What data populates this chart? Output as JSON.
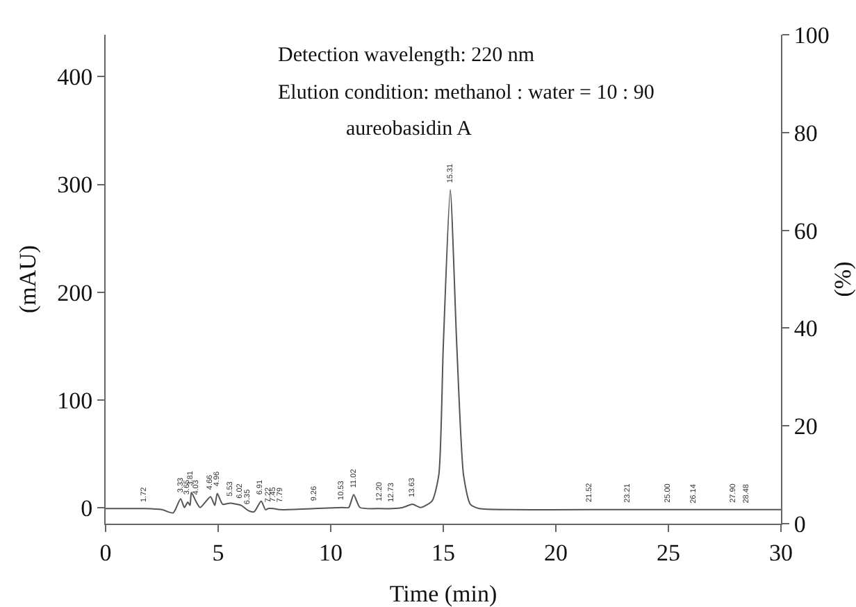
{
  "chart_data": {
    "type": "line",
    "xlabel": "Time (min)",
    "ylabel": "(mAU)",
    "y2label": "(%)",
    "x": [
      0,
      1,
      1.72,
      2.5,
      3.0,
      3.33,
      3.5,
      3.65,
      3.75,
      3.81,
      4.03,
      4.2,
      4.66,
      4.85,
      4.96,
      5.2,
      5.53,
      6.02,
      6.35,
      6.6,
      6.91,
      7.1,
      7.22,
      7.45,
      7.79,
      9.26,
      10.53,
      10.8,
      11.02,
      11.3,
      12.2,
      12.73,
      13.2,
      13.63,
      14.0,
      14.5,
      14.8,
      15.0,
      15.31,
      15.6,
      15.9,
      16.2,
      16.6,
      18,
      21.52,
      25,
      28.48,
      30
    ],
    "series": [
      {
        "color": "#555555",
        "values": [
          -1,
          -1,
          -1,
          -2,
          -5,
          8,
          0,
          5,
          2,
          14,
          5,
          0,
          10,
          2,
          13,
          3,
          4,
          2,
          -3,
          -4,
          6,
          -2,
          -1,
          -1,
          -2,
          -1,
          0,
          0,
          12,
          0,
          -1,
          -1,
          0,
          3,
          0,
          6,
          30,
          150,
          295,
          150,
          30,
          3,
          -1,
          -2,
          -2,
          -2,
          -2,
          -2
        ]
      }
    ],
    "xlim": [
      0,
      30
    ],
    "xticks": [
      0,
      5,
      10,
      15,
      20,
      25,
      30
    ],
    "ylim": [
      -15,
      439
    ],
    "yticks": [
      0,
      100,
      200,
      300,
      400
    ],
    "y2lim": [
      0,
      100
    ],
    "y2ticks": [
      0,
      20,
      40,
      60,
      80,
      100
    ],
    "grid": false,
    "marker": "none",
    "line_style": "solid",
    "annotations": [
      "Detection wavelength: 220 nm",
      "Elution condition: methanol : water = 10 : 90",
      {
        "text": "aureobasidin A",
        "x": 15.31,
        "y": 295
      },
      {
        "text": "1.72",
        "x": 1.72,
        "y": -1
      },
      {
        "text": "3.33",
        "x": 3.33,
        "y": 8
      },
      {
        "text": "3.65",
        "x": 3.65,
        "y": 5
      },
      {
        "text": "3.81",
        "x": 3.81,
        "y": 14
      },
      {
        "text": "4.03",
        "x": 4.03,
        "y": 5
      },
      {
        "text": "4.66",
        "x": 4.66,
        "y": 10
      },
      {
        "text": "4.96",
        "x": 4.96,
        "y": 13
      },
      {
        "text": "5.53",
        "x": 5.53,
        "y": 4
      },
      {
        "text": "6.02",
        "x": 6.02,
        "y": 2
      },
      {
        "text": "6.35",
        "x": 6.35,
        "y": -3
      },
      {
        "text": "6.91",
        "x": 6.91,
        "y": 6
      },
      {
        "text": "7.22",
        "x": 7.22,
        "y": -1
      },
      {
        "text": "7.45",
        "x": 7.45,
        "y": -1
      },
      {
        "text": "7.79",
        "x": 7.79,
        "y": -2
      },
      {
        "text": "9.26",
        "x": 9.26,
        "y": -1
      },
      {
        "text": "10.53",
        "x": 10.53,
        "y": 0
      },
      {
        "text": "11.02",
        "x": 11.02,
        "y": 12
      },
      {
        "text": "12.20",
        "x": 12.2,
        "y": -1
      },
      {
        "text": "12.73",
        "x": 12.73,
        "y": -1
      },
      {
        "text": "13.63",
        "x": 13.63,
        "y": 3
      },
      {
        "text": "15.31",
        "x": 15.31,
        "y": 295
      },
      {
        "text": "21.52",
        "x": 21.52,
        "y": -2
      },
      {
        "text": "23.21",
        "x": 23.21,
        "y": -2
      },
      {
        "text": "25.00",
        "x": 25,
        "y": -2
      },
      {
        "text": "26.14",
        "x": 26.14,
        "y": -2
      },
      {
        "text": "27.90",
        "x": 27.9,
        "y": -2
      },
      {
        "text": "28.48",
        "x": 28.48,
        "y": -2
      }
    ]
  }
}
